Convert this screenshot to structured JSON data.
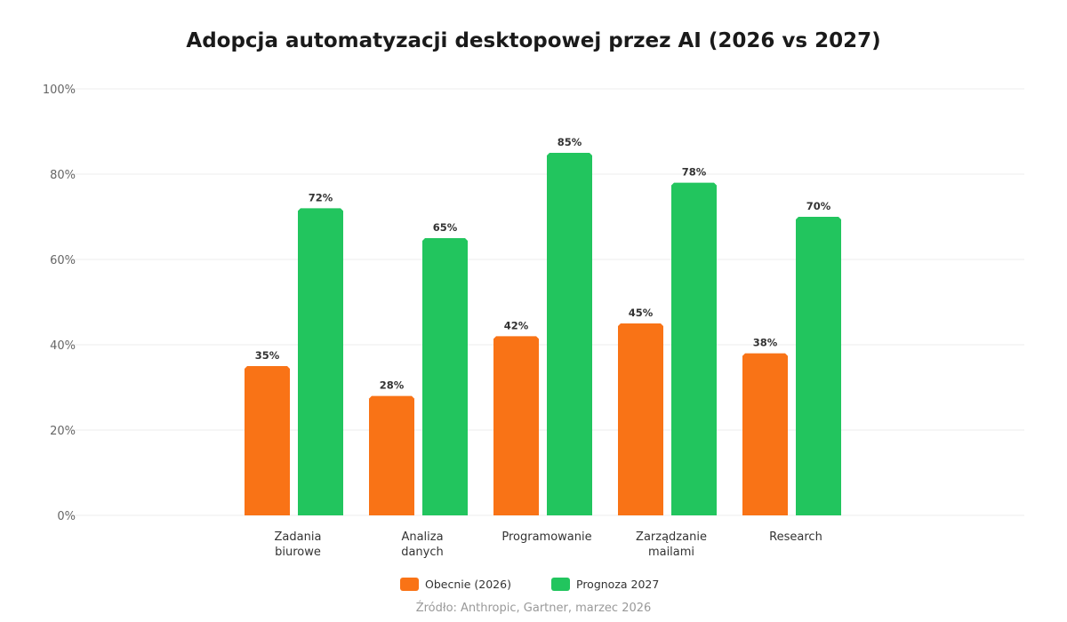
{
  "chart_data": {
    "type": "bar",
    "title": "Adopcja automatyzacji desktopowej przez AI (2026 vs 2027)",
    "categories": [
      [
        "Zadania",
        "biurowe"
      ],
      [
        "Analiza",
        "danych"
      ],
      [
        "Programowanie"
      ],
      [
        "Zarządzanie",
        "mailami"
      ],
      [
        "Research"
      ]
    ],
    "series": [
      {
        "name": "Obecnie (2026)",
        "color": "#f97316",
        "values": [
          35,
          28,
          42,
          45,
          38
        ]
      },
      {
        "name": "Prognoza 2027",
        "color": "#22c55e",
        "values": [
          72,
          65,
          85,
          78,
          70
        ]
      }
    ],
    "ylim": [
      0,
      100
    ],
    "yticks": [
      "0%",
      "20%",
      "40%",
      "60%",
      "80%",
      "100%"
    ],
    "value_suffix": "%",
    "grid": true,
    "legend_position": "bottom",
    "source": "Źródło: Anthropic, Gartner, marzec 2026"
  }
}
